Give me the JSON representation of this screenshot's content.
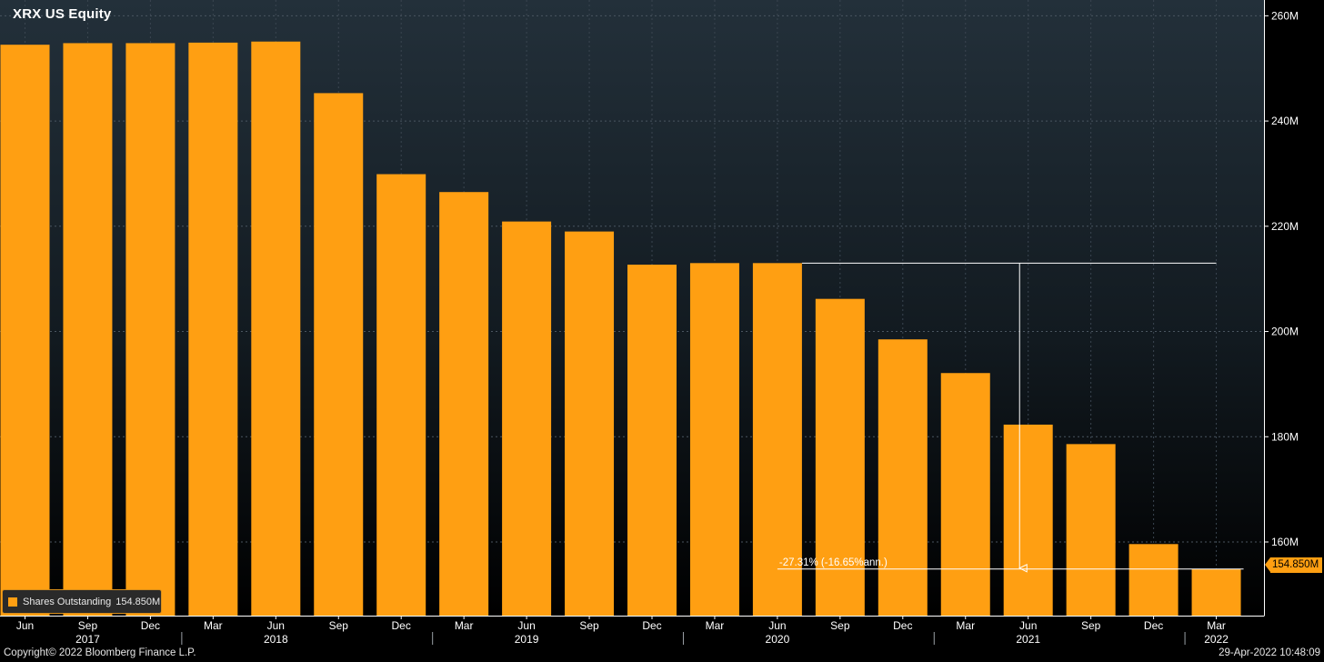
{
  "title": "XRX US Equity",
  "legend": {
    "label": "Shares Outstanding",
    "value": "154.850M"
  },
  "last_value_tag": "154.850M",
  "annotation": {
    "text": "-27.31% (-16.65%ann.)"
  },
  "copyright": "Copyright© 2022 Bloomberg Finance L.P.",
  "timestamp": "29-Apr-2022 10:48:09",
  "colors": {
    "bar": "#ff9f12",
    "background_top": "#23303a",
    "background_bottom": "#000000",
    "axis": "#ffffff",
    "text": "#ffffff"
  },
  "chart_data": {
    "type": "bar",
    "categories": [
      "Jun",
      "Sep",
      "Dec",
      "Mar",
      "Jun",
      "Sep",
      "Dec",
      "Mar",
      "Jun",
      "Sep",
      "Dec",
      "Mar",
      "Jun",
      "Sep",
      "Dec",
      "Mar",
      "Jun",
      "Sep",
      "Dec",
      "Mar"
    ],
    "years": [
      {
        "label": "2017",
        "category_index": 1
      },
      {
        "label": "2018",
        "category_index": 4
      },
      {
        "label": "2019",
        "category_index": 8
      },
      {
        "label": "2020",
        "category_index": 12
      },
      {
        "label": "2021",
        "category_index": 16
      },
      {
        "label": "2022",
        "category_index": 19
      }
    ],
    "year_separators_before_index": [
      3,
      7,
      11,
      15,
      19
    ],
    "series": [
      {
        "name": "Shares Outstanding",
        "values": [
          254.5,
          254.8,
          254.8,
          254.9,
          255.1,
          245.3,
          229.9,
          226.5,
          220.9,
          219.0,
          212.7,
          213.0,
          213.0,
          206.2,
          198.5,
          192.1,
          182.3,
          178.6,
          159.6,
          154.85
        ]
      }
    ],
    "ylim": [
      146,
      263
    ],
    "yticks": [
      160,
      180,
      200,
      220,
      240,
      260
    ],
    "ytick_labels": [
      "160M",
      "180M",
      "200M",
      "220M",
      "240M",
      "260M"
    ],
    "y_axis_position": "right",
    "grid": true,
    "legend_position": "bottom-left",
    "measure": {
      "from_index": 12,
      "to_index": 19,
      "from_value": 213.0,
      "to_value": 154.85,
      "label": "-27.31% (-16.65%ann.)"
    }
  }
}
